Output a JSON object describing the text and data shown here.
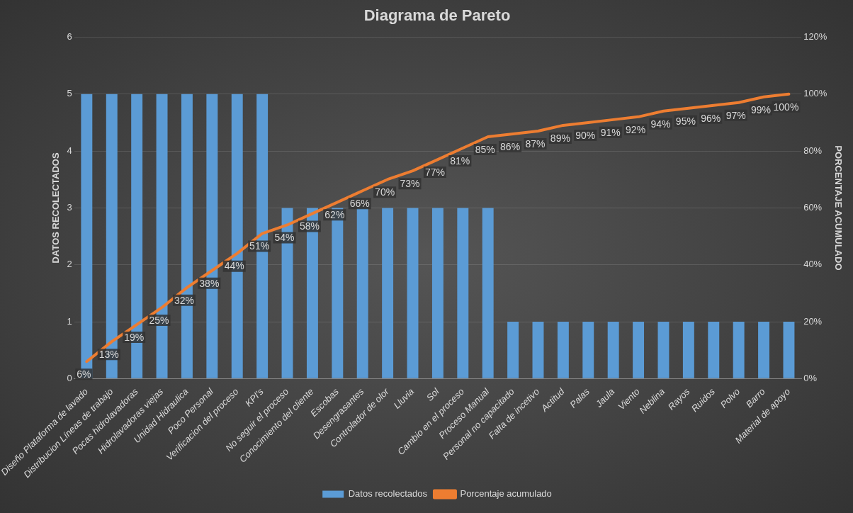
{
  "chart_data": {
    "type": "bar",
    "title": "Diagrama de Pareto",
    "ylabel": "DATOS RECOLECTADOS",
    "y2label": "PORCENTAJE ACUMULADO",
    "categories": [
      "Diseño Plataforma de lavado",
      "Distribucion Líneas de trabajo",
      "Pocas hidrolavadoras",
      "Hidrolavadoras viejas",
      "Unidad Hidraulica",
      "Poco Personal",
      "Verificacion del proceso",
      "KPI's",
      "No seguir el proceso",
      "Conocimiento del cliente",
      "Escobas",
      "Desengrasantes",
      "Controlador de olor",
      "Lluvia",
      "Sol",
      "Cambio en el proceso",
      "Proceso Manual",
      "Personal no capacitado",
      "Falta de incetivo",
      "Actitud",
      "Palas",
      "Jaula",
      "Viento",
      "Neblina",
      "Rayos",
      "Ruidos",
      "Polvo",
      "Barro",
      "Material de apoyo"
    ],
    "series": [
      {
        "name": "Datos recolectados",
        "color": "#5b9bd5",
        "values": [
          5,
          5,
          5,
          5,
          5,
          5,
          5,
          5,
          3,
          3,
          3,
          3,
          3,
          3,
          3,
          3,
          3,
          1,
          1,
          1,
          1,
          1,
          1,
          1,
          1,
          1,
          1,
          1,
          1
        ]
      },
      {
        "name": "Porcentaje acumulado",
        "type": "line",
        "axis": "y2",
        "color": "#ed7d31",
        "values": [
          6,
          13,
          19,
          25,
          32,
          38,
          44,
          51,
          54,
          58,
          62,
          66,
          70,
          73,
          77,
          81,
          85,
          86,
          87,
          89,
          90,
          91,
          92,
          94,
          95,
          96,
          97,
          99,
          100
        ],
        "value_labels": [
          "6%",
          "13%",
          "19%",
          "25%",
          "32%",
          "38%",
          "44%",
          "51%",
          "54%",
          "58%",
          "62%",
          "66%",
          "70%",
          "73%",
          "77%",
          "81%",
          "85%",
          "86%",
          "87%",
          "89%",
          "90%",
          "91%",
          "92%",
          "94%",
          "95%",
          "96%",
          "97%",
          "99%",
          "100%"
        ]
      }
    ],
    "ylim": [
      0,
      6
    ],
    "yticks": [
      0,
      1,
      2,
      3,
      4,
      5,
      6
    ],
    "y2lim": [
      0,
      120
    ],
    "y2ticks": [
      {
        "value": 0,
        "label": "0%"
      },
      {
        "value": 20,
        "label": "20%"
      },
      {
        "value": 40,
        "label": "40%"
      },
      {
        "value": 60,
        "label": "60%"
      },
      {
        "value": 80,
        "label": "80%"
      },
      {
        "value": 100,
        "label": "100%"
      },
      {
        "value": 120,
        "label": "120%"
      }
    ],
    "grid": "y",
    "legend": "bottom",
    "marker": "none",
    "line_style": "solid"
  }
}
